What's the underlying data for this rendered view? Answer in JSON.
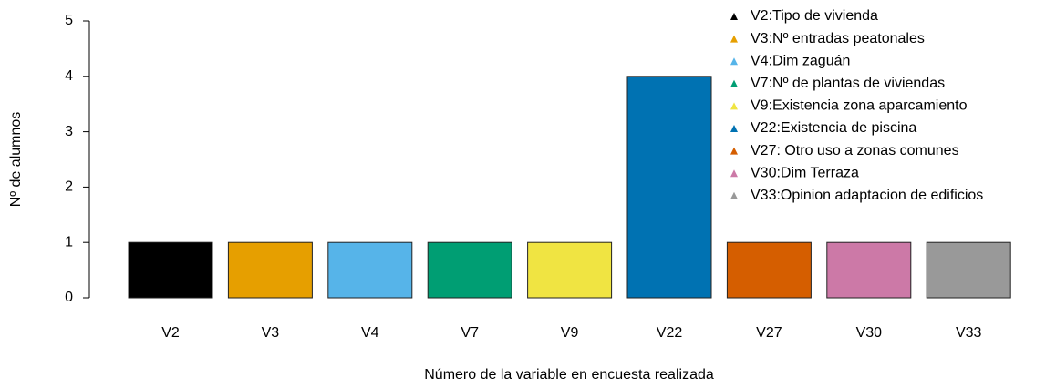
{
  "chart_data": {
    "type": "bar",
    "categories": [
      "V2",
      "V3",
      "V4",
      "V7",
      "V9",
      "V22",
      "V27",
      "V30",
      "V33"
    ],
    "values": [
      1,
      1,
      1,
      1,
      1,
      4,
      1,
      1,
      1
    ],
    "colors": [
      "#000000",
      "#e69f00",
      "#56b4e9",
      "#009e73",
      "#f0e442",
      "#0072b2",
      "#d55e00",
      "#cc79a7",
      "#999999"
    ],
    "legend_labels": [
      "V2:Tipo de vivienda",
      "V3:Nº entradas peatonales",
      "V4:Dim zaguán",
      "V7:Nº de plantas de viviendas",
      "V9:Existencia zona aparcamiento",
      "V22:Existencia de piscina",
      "V27: Otro uso a zonas comunes",
      "V30:Dim Terraza",
      "V33:Opinion adaptacion de edificios"
    ],
    "x_label": "Número de la variable en encuesta realizada",
    "y_label": "Nº de alumnos",
    "ylim": [
      0,
      5
    ],
    "yticks": [
      0,
      1,
      2,
      3,
      4,
      5
    ],
    "grid": false
  }
}
